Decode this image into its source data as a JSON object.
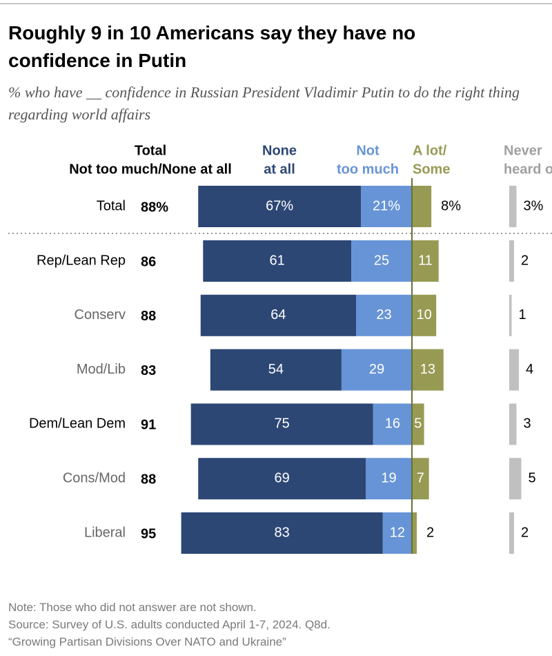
{
  "chart_data": {
    "type": "diverging-bar",
    "title": "Roughly 9 in 10 Americans say they have no confidence in Putin",
    "subtitle": "% who have __ confidence in Russian President Vladimir Putin to do the right thing regarding world affairs",
    "categories": [
      "Total",
      "Rep/Lean Rep",
      "Conserv",
      "Mod/Lib",
      "Dem/Lean Dem",
      "Cons/Mod",
      "Liberal"
    ],
    "category_colors": [
      "#000000",
      "#000000",
      "#666666",
      "#666666",
      "#000000",
      "#666666",
      "#666666"
    ],
    "totals": {
      "header": [
        "Total",
        "Not too much/None at all"
      ],
      "values": [
        88,
        86,
        88,
        83,
        91,
        88,
        95
      ],
      "value_labels": [
        "88%",
        "86",
        "88",
        "83",
        "91",
        "88",
        "95"
      ]
    },
    "series": [
      {
        "name": [
          "None",
          "at all"
        ],
        "color": "#2d4775",
        "values": [
          67,
          61,
          64,
          54,
          75,
          69,
          83
        ],
        "value_labels": [
          "67%",
          "61",
          "64",
          "54",
          "75",
          "69",
          "83"
        ]
      },
      {
        "name": [
          "Not",
          "too much"
        ],
        "color": "#6794d6",
        "values": [
          21,
          25,
          23,
          29,
          16,
          19,
          12
        ],
        "value_labels": [
          "21%",
          "25",
          "23",
          "29",
          "16",
          "19",
          "12"
        ]
      },
      {
        "name": [
          "A lot/",
          "Some"
        ],
        "color": "#979a53",
        "values": [
          8,
          11,
          10,
          13,
          5,
          7,
          2
        ],
        "value_labels": [
          "8%",
          "11",
          "10",
          "13",
          "5",
          "7",
          "2"
        ]
      },
      {
        "name": [
          "Never",
          "heard of"
        ],
        "color": "#c0c0c0",
        "values": [
          3,
          2,
          1,
          4,
          3,
          5,
          2
        ],
        "value_labels": [
          "3%",
          "2",
          "1",
          "4",
          "3",
          "5",
          "2"
        ]
      }
    ],
    "notes": [
      "Note: Those who did not answer are not shown.",
      "Source: Survey of U.S. adults conducted April 1-7, 2024. Q8d.",
      "“Growing Partisan Divisions Over NATO and Ukraine”"
    ]
  }
}
